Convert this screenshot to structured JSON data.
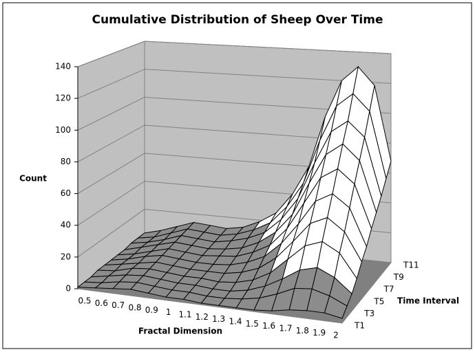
{
  "chart_data": {
    "type": "surface3d",
    "title": "Cumulative Distribution of Sheep Over Time",
    "x_label": "Fractal Dimension",
    "y_label": "Count",
    "z_label": "Time Interval",
    "categories": [
      "0.5",
      "0.6",
      "0.7",
      "0.8",
      "0.9",
      "1",
      "1.1",
      "1.2",
      "1.3",
      "1.4",
      "1.5",
      "1.6",
      "1.7",
      "1.8",
      "1.9",
      "2"
    ],
    "z_categories": [
      "T1",
      null,
      "T3",
      null,
      "T5",
      null,
      "T7",
      null,
      "T9",
      null,
      "T11"
    ],
    "series": [
      {
        "values": [
          1,
          2,
          3,
          4,
          3,
          2,
          2,
          1,
          1,
          1,
          1,
          2,
          4,
          5,
          5,
          3
        ]
      },
      {
        "values": [
          1,
          2,
          4,
          5,
          4,
          3,
          3,
          2,
          2,
          3,
          5,
          9,
          14,
          15,
          12,
          7
        ]
      },
      {
        "values": [
          1,
          3,
          5,
          6,
          5,
          4,
          4,
          3,
          3,
          5,
          9,
          15,
          22,
          25,
          20,
          11
        ]
      },
      {
        "values": [
          2,
          3,
          6,
          7,
          6,
          5,
          5,
          4,
          5,
          8,
          14,
          24,
          34,
          38,
          32,
          17
        ]
      },
      {
        "values": [
          2,
          4,
          6,
          8,
          7,
          6,
          6,
          6,
          8,
          12,
          20,
          32,
          45,
          50,
          42,
          24
        ]
      },
      {
        "values": [
          2,
          4,
          7,
          9,
          8,
          7,
          7,
          8,
          11,
          16,
          26,
          40,
          56,
          62,
          54,
          30
        ]
      },
      {
        "values": [
          2,
          4,
          7,
          10,
          9,
          8,
          9,
          10,
          14,
          20,
          32,
          50,
          68,
          75,
          66,
          38
        ]
      },
      {
        "values": [
          2,
          5,
          8,
          11,
          10,
          9,
          10,
          12,
          17,
          25,
          38,
          60,
          80,
          88,
          78,
          45
        ]
      },
      {
        "values": [
          3,
          5,
          8,
          12,
          11,
          10,
          12,
          15,
          20,
          30,
          45,
          70,
          92,
          100,
          90,
          52
        ]
      },
      {
        "values": [
          3,
          5,
          9,
          13,
          12,
          11,
          13,
          17,
          23,
          35,
          52,
          82,
          106,
          115,
          104,
          60
        ]
      },
      {
        "values": [
          3,
          6,
          10,
          14,
          13,
          12,
          14,
          19,
          26,
          40,
          60,
          95,
          120,
          130,
          118,
          68
        ]
      }
    ],
    "ylim": [
      0,
      140
    ],
    "yticks": [
      0,
      20,
      40,
      60,
      80,
      100,
      120,
      140
    ],
    "grid": true,
    "surface_colors": [
      "#8c8c8c",
      "#ffffff"
    ],
    "wall_color": "#c0c0c0",
    "floor_color": "#808080"
  }
}
